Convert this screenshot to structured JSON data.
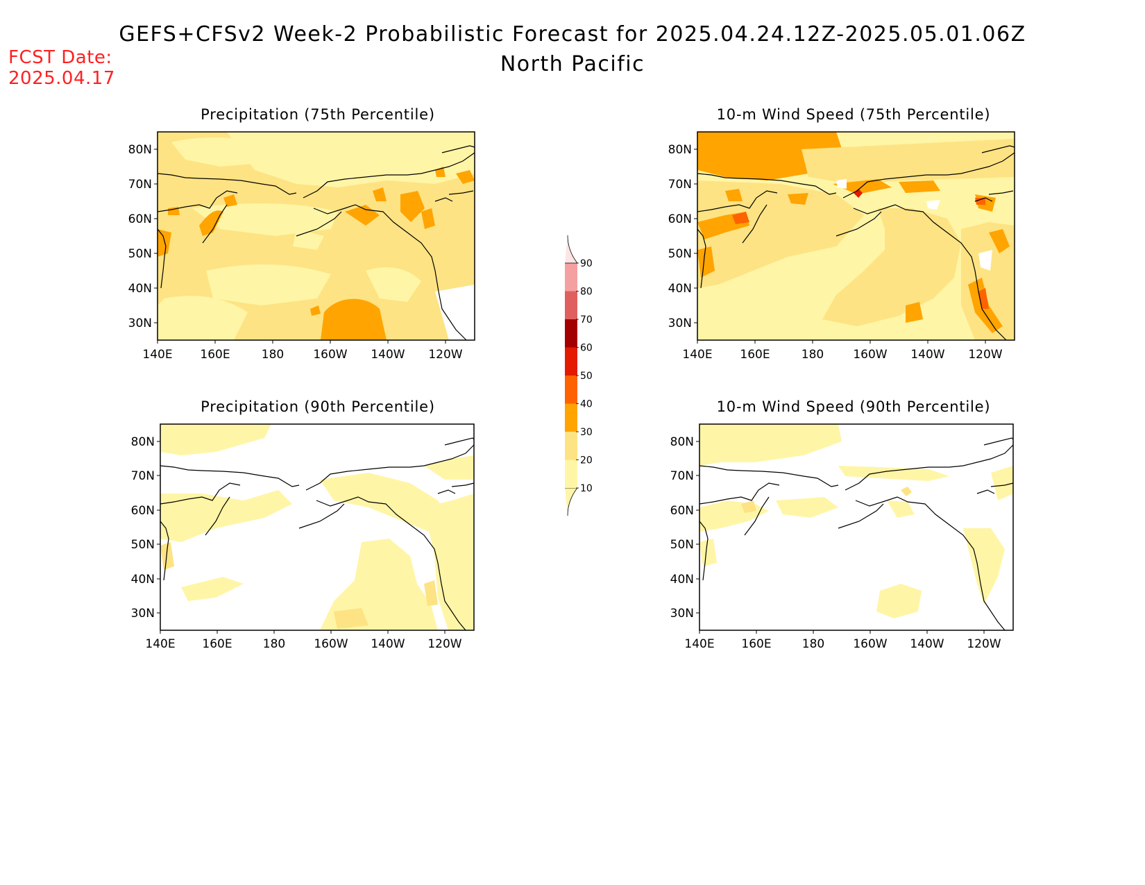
{
  "header": {
    "title": "GEFS+CFSv2 Week-2 Probabilistic Forecast for 2025.04.24.12Z-2025.05.01.06Z",
    "subtitle": "North Pacific",
    "fcst_label": "FCST Date:",
    "fcst_date": "2025.04.17"
  },
  "axes": {
    "lat_labels": [
      "80N",
      "70N",
      "60N",
      "50N",
      "40N",
      "30N"
    ],
    "lon_labels": [
      "140E",
      "160E",
      "180",
      "160W",
      "140W",
      "120W"
    ]
  },
  "panels": [
    {
      "title": "Precipitation (75th Percentile)",
      "base_level": "#fde383"
    },
    {
      "title": "10-m Wind Speed (75th Percentile)",
      "base_level": "#fff5a6"
    },
    {
      "title": "Precipitation (90th Percentile)",
      "base_level": "#ffffff"
    },
    {
      "title": "10-m Wind Speed (90th Percentile)",
      "base_level": "#ffffff"
    }
  ],
  "colorbar": {
    "levels": [
      "10",
      "20",
      "30",
      "40",
      "50",
      "60",
      "70",
      "80",
      "90"
    ],
    "colors": [
      "#fff5a6",
      "#fde383",
      "#ffa400",
      "#ff6200",
      "#e31a00",
      "#a30000",
      "#e06060",
      "#f4a0a0",
      "#ffe4e4"
    ]
  }
}
